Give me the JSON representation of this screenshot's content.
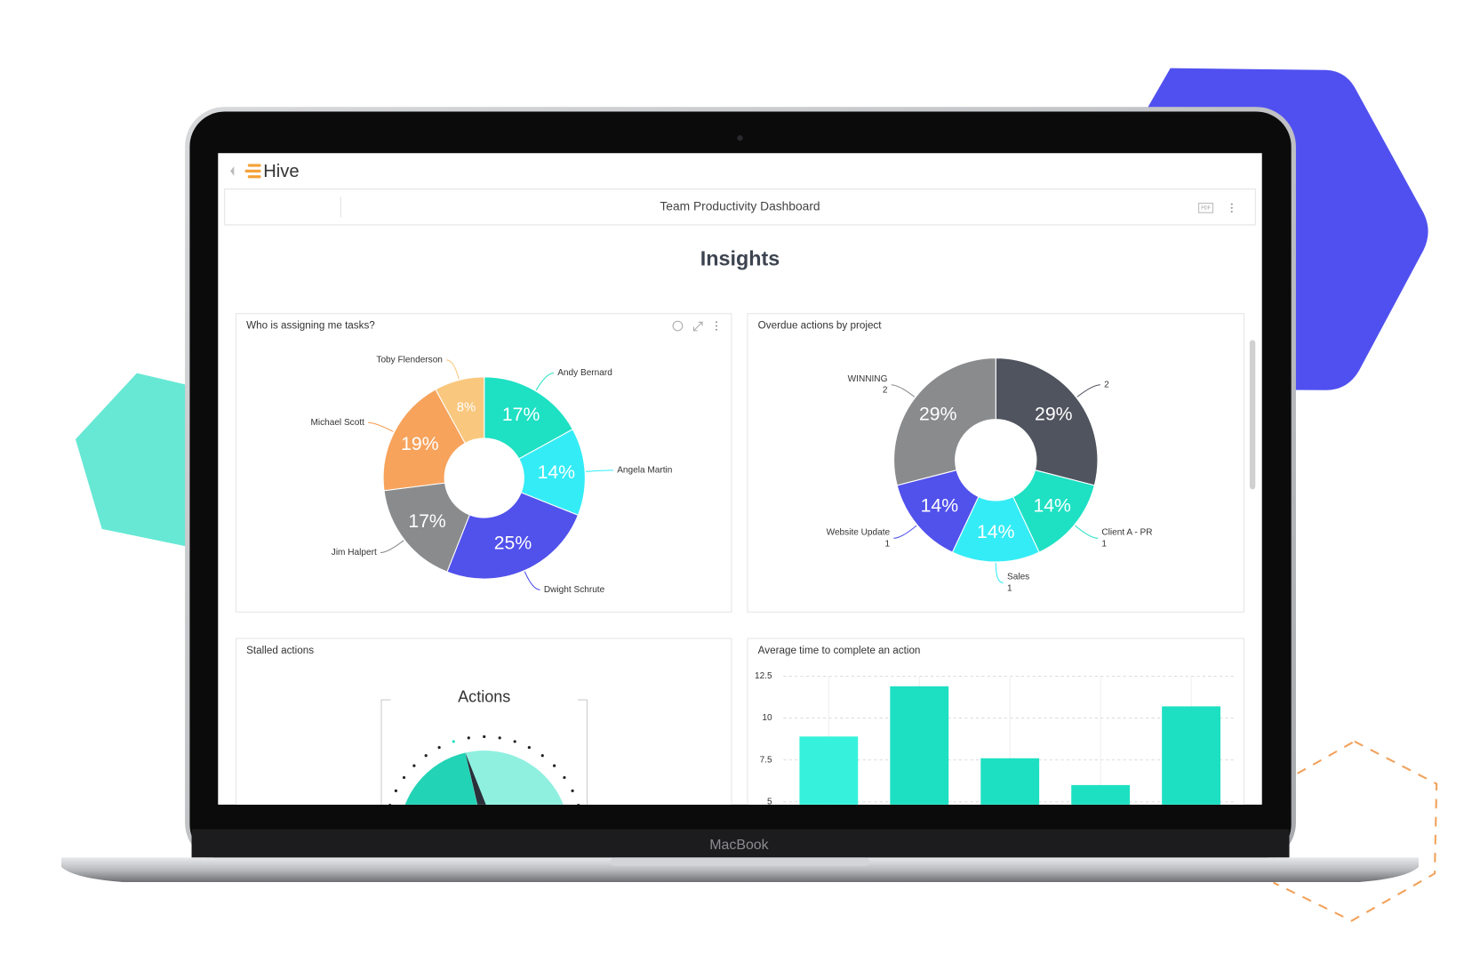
{
  "brand": "Hive",
  "dashboard_title": "Team Productivity Dashboard",
  "pdf_button": "PDF",
  "heading": "Insights",
  "device_label": "MacBook",
  "chart_data": [
    {
      "type": "pie",
      "title": "Who is assigning me tasks?",
      "categories": [
        "Andy Bernard",
        "Angela Martin",
        "Dwight Schrute",
        "Jim Halpert",
        "Michael Scott",
        "Toby Flenderson"
      ],
      "values": [
        17,
        14,
        25,
        17,
        19,
        8
      ],
      "value_labels": [
        "17%",
        "14%",
        "25%",
        "17%",
        "19%",
        "8%"
      ],
      "colors": [
        "#1ee0c3",
        "#34ecf6",
        "#5151ec",
        "#8a8b8d",
        "#f7a35c",
        "#f9c77e"
      ]
    },
    {
      "type": "pie",
      "title": "Overdue actions by project",
      "categories": [
        null,
        "Client A - PR",
        "Sales",
        "Website Update",
        "WINNING"
      ],
      "counts": [
        2,
        1,
        1,
        1,
        2
      ],
      "values": [
        29,
        14,
        14,
        14,
        29
      ],
      "value_labels": [
        "29%",
        "14%",
        "14%",
        "14%",
        "29%"
      ],
      "colors": [
        "#50545f",
        "#1ee0c3",
        "#34ecf6",
        "#5151ec",
        "#8a8b8d"
      ]
    },
    {
      "type": "gauge",
      "title": "Stalled actions",
      "subtitle": "Actions"
    },
    {
      "type": "bar",
      "title": "Average time to complete an action",
      "categories": [
        null,
        null,
        null,
        null,
        null
      ],
      "values": [
        8.9,
        11.9,
        7.6,
        6.0,
        10.7
      ],
      "colors": [
        "#36f2dc",
        "#1de0c2",
        "#1de0c2",
        "#1de0c2",
        "#1de0c2"
      ],
      "ylim": [
        5,
        12.5
      ],
      "yticks": [
        5,
        7.5,
        10,
        12.5
      ],
      "grid": true
    }
  ]
}
